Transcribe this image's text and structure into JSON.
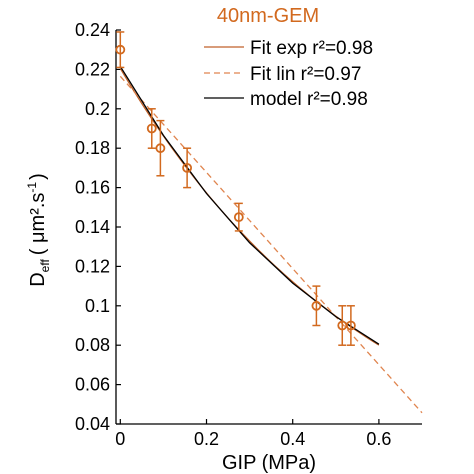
{
  "chart_data": {
    "type": "scatter",
    "title": "40nm-GEM",
    "xlabel": "GIP (MPa)",
    "ylabel": {
      "main": "D",
      "subscript": "eff",
      "units_open": "( μm².s",
      "units_exp": "-1",
      "units_close": ")"
    },
    "xlim": [
      -0.01,
      0.7
    ],
    "ylim": [
      0.04,
      0.24
    ],
    "xticks": [
      0,
      0.2,
      0.4,
      0.6
    ],
    "xtick_labels": [
      "0",
      "0.2",
      "0.4",
      "0.6"
    ],
    "yticks": [
      0.04,
      0.06,
      0.08,
      0.1,
      0.12,
      0.14,
      0.16,
      0.18,
      0.2,
      0.22,
      0.24
    ],
    "ytick_labels": [
      "0.04",
      "0.06",
      "0.08",
      "0.1",
      "0.12",
      "0.14",
      "0.16",
      "0.18",
      "0.2",
      "0.22",
      "0.24"
    ],
    "grid": false,
    "legend_position": "top-right",
    "data_series": {
      "x": [
        0,
        0.073,
        0.093,
        0.155,
        0.275,
        0.455,
        0.515,
        0.535
      ],
      "y": [
        0.23,
        0.19,
        0.18,
        0.17,
        0.145,
        0.1,
        0.09,
        0.09
      ],
      "err": [
        0.009,
        0.01,
        0.014,
        0.01,
        0.007,
        0.01,
        0.01,
        0.01
      ],
      "color": "#d2691e"
    },
    "series": [
      {
        "name": "Fit exp r²=0.98",
        "color": "#c0622a",
        "dash": "solid",
        "kind": "exp",
        "a": 0.2205,
        "b": -1.689,
        "x_range": [
          0,
          0.6
        ]
      },
      {
        "name": "Fit lin r²=0.97",
        "color": "#e0854f",
        "dash": "dashed",
        "kind": "linear",
        "intercept": 0.2165,
        "slope": -0.244,
        "x_range": [
          0,
          0.7
        ]
      },
      {
        "name": "model r²=0.98",
        "color": "#000000",
        "dash": "solid",
        "kind": "model",
        "x": [
          0,
          0.1,
          0.2,
          0.3,
          0.4,
          0.5,
          0.6
        ],
        "y": [
          0.2215,
          0.1865,
          0.157,
          0.132,
          0.1115,
          0.0945,
          0.0805
        ]
      }
    ]
  }
}
